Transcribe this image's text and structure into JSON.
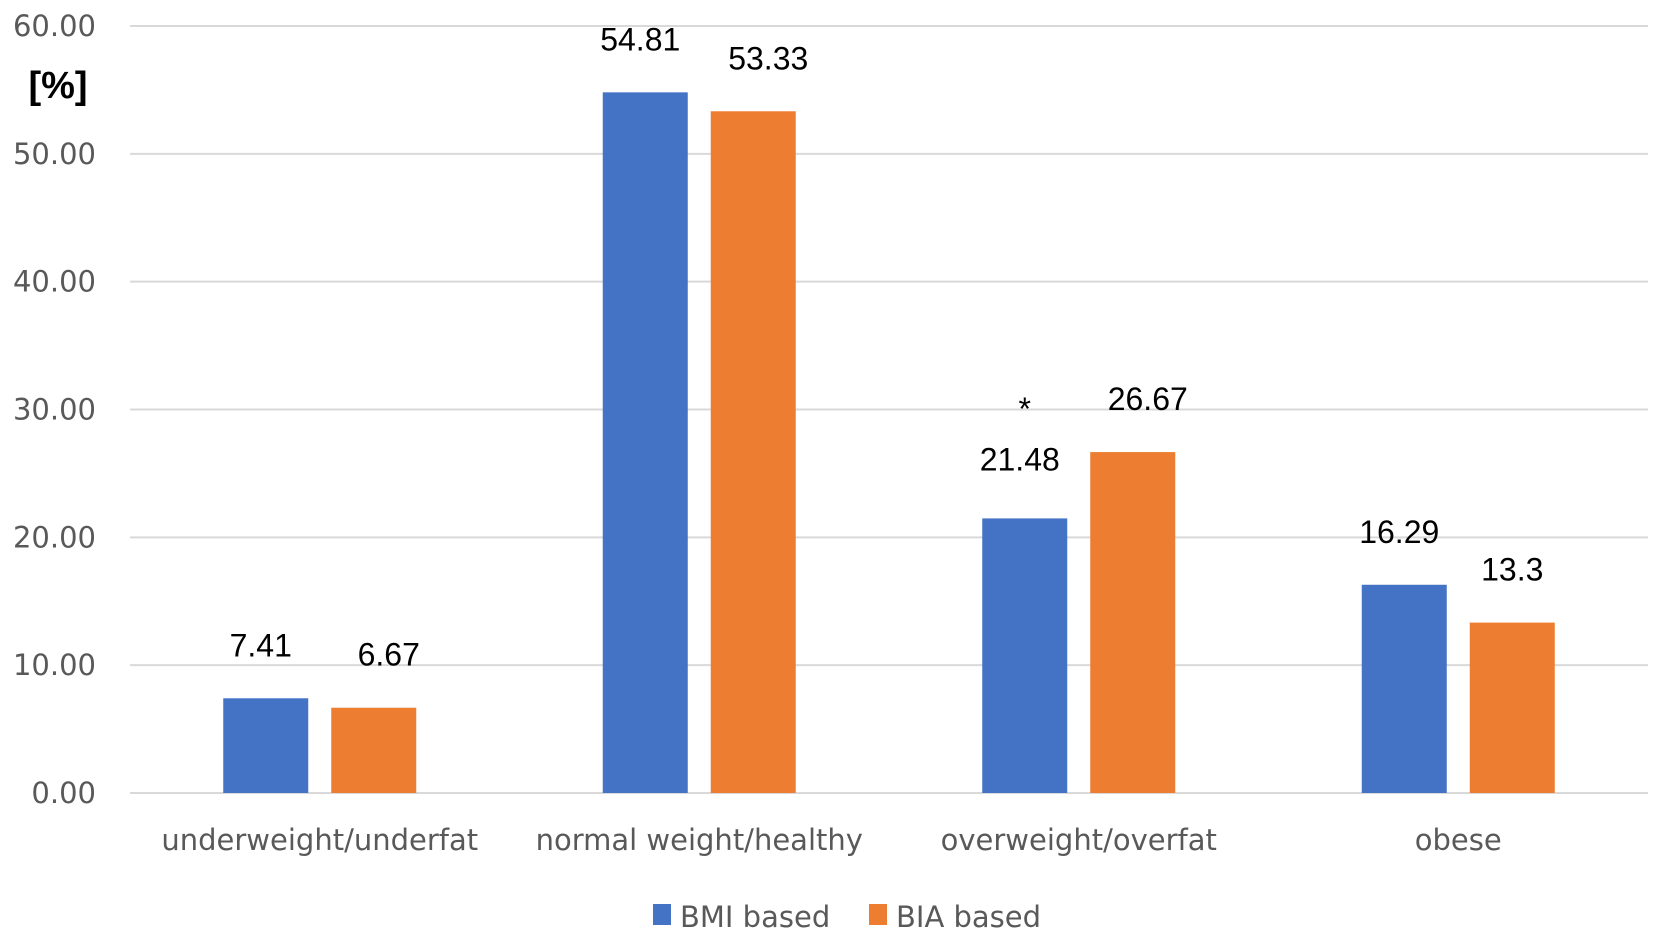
{
  "chart_data": {
    "type": "bar",
    "title": "",
    "xlabel": "",
    "ylabel": "[%]",
    "ylim": [
      0,
      60
    ],
    "yticks": [
      "0.00",
      "10.00",
      "20.00",
      "30.00",
      "40.00",
      "50.00",
      "60.00"
    ],
    "grid": true,
    "legend_position": "bottom",
    "categories": [
      "underweight/underfat",
      "normal weight/healthy",
      "overweight/overfat",
      "obese"
    ],
    "series": [
      {
        "name": "BMI based",
        "color": "#4472C4",
        "values": [
          7.41,
          54.81,
          21.48,
          16.29
        ],
        "labels": [
          "7.41",
          "54.81",
          "21.48",
          "16.29"
        ]
      },
      {
        "name": "BIA based",
        "color": "#ED7D31",
        "values": [
          6.67,
          53.33,
          26.67,
          13.33
        ],
        "labels": [
          "6.67",
          "53.33",
          "26.67",
          "13.3"
        ]
      }
    ],
    "annotations": [
      {
        "text": "*",
        "category": "overweight/overfat"
      }
    ]
  }
}
